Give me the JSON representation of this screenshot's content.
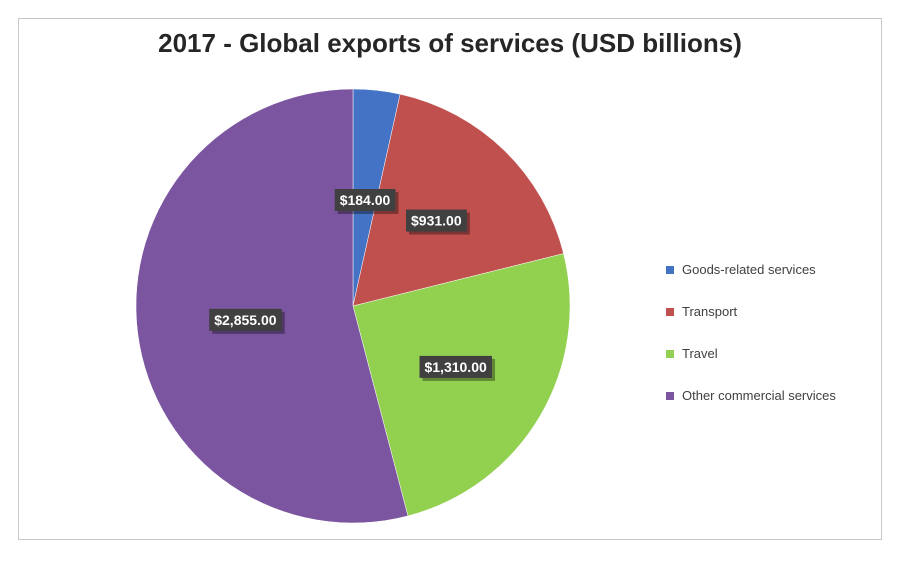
{
  "chart_data": {
    "type": "pie",
    "title": "2017 - Global exports of services (USD billions)",
    "categories": [
      "Goods-related services",
      "Transport",
      "Travel",
      "Other commercial services"
    ],
    "values": [
      184,
      931,
      1310,
      2855
    ],
    "value_labels": [
      "$184.00",
      "$931.00",
      "$1,310.00",
      "$2,855.00"
    ],
    "colors": [
      "#4472C4",
      "#C0504D",
      "#92D050",
      "#7B55A0"
    ],
    "legend_position": "right",
    "start_angle": "12 o'clock",
    "direction": "clockwise"
  }
}
